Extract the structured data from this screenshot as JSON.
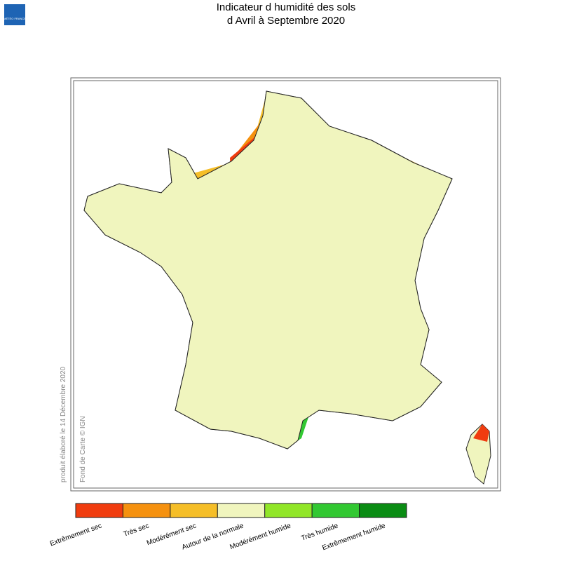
{
  "logo": {
    "text": "MÉTÉO FRANCE"
  },
  "header": {
    "title": [
      "Indicateur d humidité des sols",
      "d Avril à Septembre 2020"
    ]
  },
  "credits": {
    "produced": "produit élaboré le 14 Décembre 2020",
    "basemap": "Fond de Carte © IGN"
  },
  "legend": {
    "items": [
      {
        "label": "Extrêmement sec",
        "color": "#f03c0f"
      },
      {
        "label": "Très sec",
        "color": "#f5910f"
      },
      {
        "label": "Modérément sec",
        "color": "#f5be28"
      },
      {
        "label": "Autour de la normale",
        "color": "#f0f5be"
      },
      {
        "label": "Modérément humide",
        "color": "#91e628"
      },
      {
        "label": "Très humide",
        "color": "#32c832"
      },
      {
        "label": "Extrêmement humide",
        "color": "#0a8c14"
      }
    ]
  }
}
